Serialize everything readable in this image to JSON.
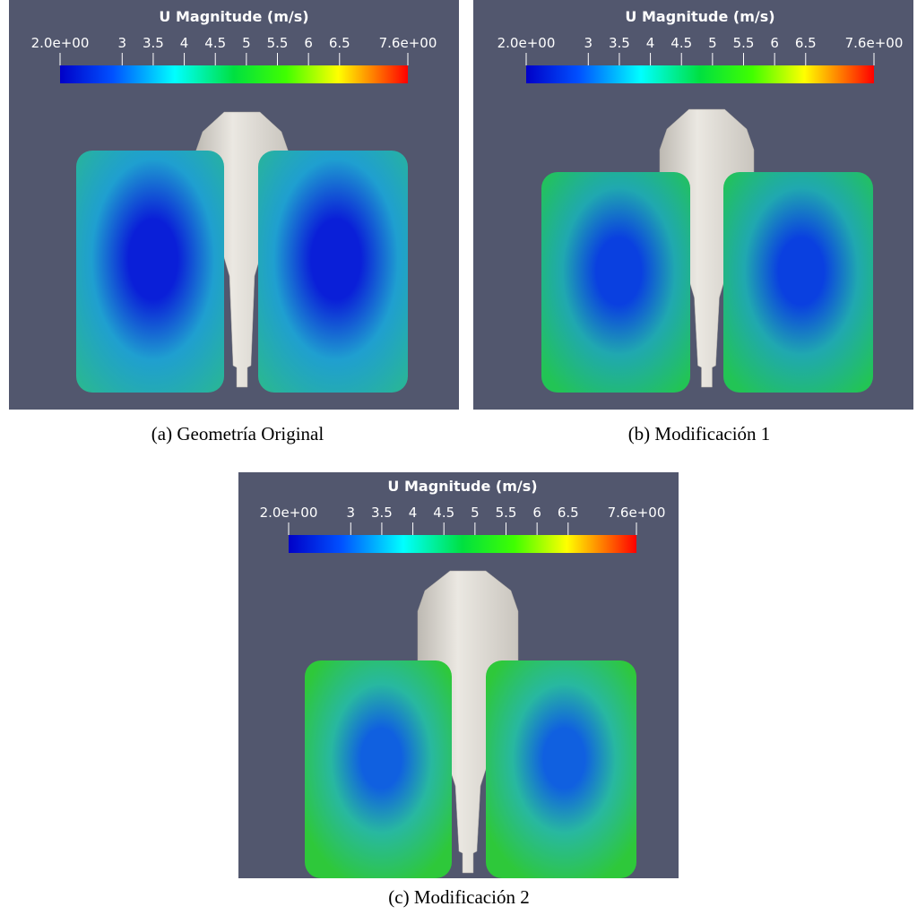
{
  "panels": [
    {
      "colorbar": {
        "title": "U Magnitude (m/s)",
        "ticks": [
          {
            "value": 2.0,
            "label": "2.0e+00"
          },
          3,
          3.5,
          4,
          4.5,
          5,
          5.5,
          6,
          6.5,
          {
            "value": 7.6,
            "label": "7.6e+00"
          }
        ]
      },
      "caption": "(a) Geometría Original"
    },
    {
      "colorbar": {
        "title": "U Magnitude (m/s)",
        "ticks": [
          {
            "value": 2.0,
            "label": "2.0e+00"
          },
          3,
          3.5,
          4,
          4.5,
          5,
          5.5,
          6,
          6.5,
          {
            "value": 7.6,
            "label": "7.6e+00"
          }
        ]
      },
      "caption": "(b) Modificación 1"
    },
    {
      "colorbar": {
        "title": "U Magnitude (m/s)",
        "ticks": [
          {
            "value": 2.0,
            "label": "2.0e+00"
          },
          3,
          3.5,
          4,
          4.5,
          5,
          5.5,
          6,
          6.5,
          {
            "value": 7.6,
            "label": "7.6e+00"
          }
        ]
      },
      "caption": "(c) Modificación 2"
    }
  ]
}
